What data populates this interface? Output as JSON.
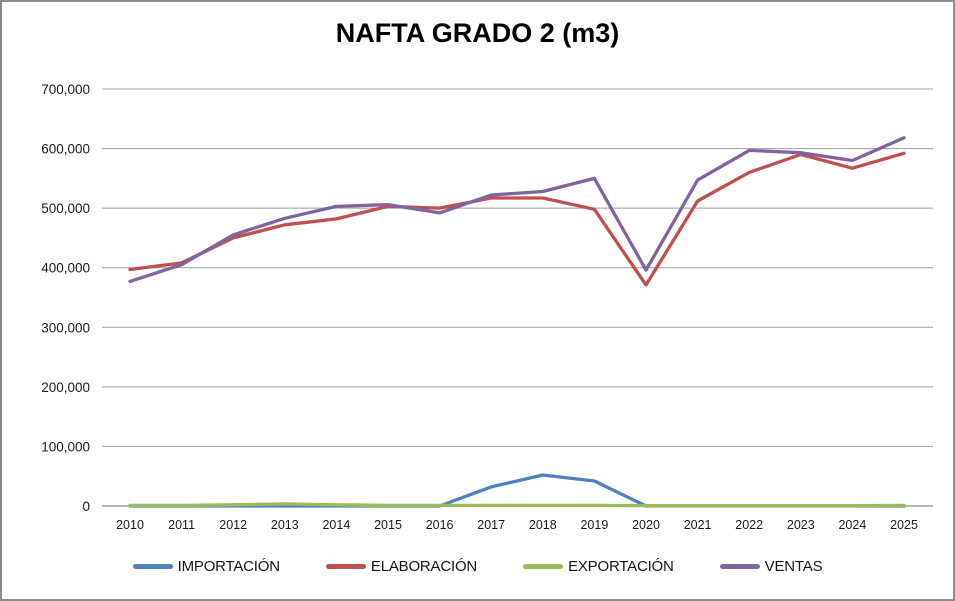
{
  "chart_data": {
    "type": "line",
    "title": "NAFTA GRADO 2 (m3)",
    "xlabel": "",
    "ylabel": "",
    "categories": [
      "2010",
      "2011",
      "2012",
      "2013",
      "2014",
      "2015",
      "2016",
      "2017",
      "2018",
      "2019",
      "2020",
      "2021",
      "2022",
      "2023",
      "2024",
      "2025"
    ],
    "series": [
      {
        "name": "IMPORTACIÓN",
        "color": "#4F81BD",
        "values": [
          0,
          0,
          0,
          0,
          0,
          0,
          0,
          32000,
          52000,
          42000,
          0,
          0,
          0,
          0,
          0,
          0
        ]
      },
      {
        "name": "ELABORACIÓN",
        "color": "#C0504D",
        "values": [
          397000,
          408000,
          450000,
          472000,
          482000,
          503000,
          500000,
          517000,
          517000,
          498000,
          371000,
          512000,
          560000,
          590000,
          567000,
          592000
        ]
      },
      {
        "name": "EXPORTACIÓN",
        "color": "#9BBB59",
        "values": [
          1000,
          1000,
          2000,
          3500,
          2000,
          1000,
          1000,
          1000,
          1000,
          1000,
          500,
          500,
          500,
          500,
          500,
          1000
        ]
      },
      {
        "name": "VENTAS",
        "color": "#8064A2",
        "values": [
          377000,
          405000,
          455000,
          483000,
          503000,
          506000,
          492000,
          522000,
          528000,
          550000,
          396000,
          547000,
          597000,
          593000,
          580000,
          618000
        ]
      }
    ],
    "ylim": [
      0,
      700000
    ],
    "ytick_step": 100000,
    "ytick_labels": [
      "0",
      "100,000",
      "200,000",
      "300,000",
      "400,000",
      "500,000",
      "600,000",
      "700,000"
    ],
    "grid": true,
    "legend_position": "bottom"
  },
  "styles": {
    "grid_color": "#9d9d9d",
    "axis_color": "#8a8a8a",
    "border_color": "#8c8c8c",
    "title_color": "#000000",
    "tick_label_color": "#1a1a1a"
  }
}
